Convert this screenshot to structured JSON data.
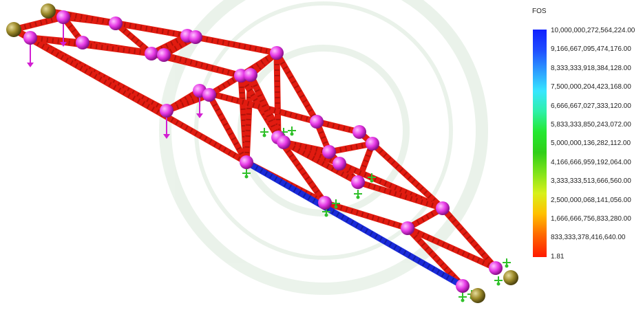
{
  "legend": {
    "title": "FOS",
    "ticks": [
      "10,000,000,272,564,224.00",
      "9,166,667,095,474,176.00",
      "8,333,333,918,384,128.00",
      "7,500,000,204,423,168.00",
      "6,666,667,027,333,120.00",
      "5,833,333,850,243,072.00",
      "5,000,000,136,282,112.00",
      "4,166,666,959,192,064.00",
      "3,333,333,513,666,560.00",
      "2,500,000,068,141,056.00",
      "1,666,666,756,833,280.00",
      "833,333,378,416,640.00",
      "1.81"
    ]
  },
  "colors": {
    "member": "#e11b10",
    "member_dark": "#8c0b05",
    "highlight_member": "#1a2ad9",
    "joint": "#e63ae6",
    "support": "#9c8a2a",
    "load_arrow": "#d21fd2",
    "fixture": "#2fc02a"
  },
  "icons": {
    "support": "fixed-support-sphere-icon",
    "load": "downward-force-arrow-icon",
    "fixture": "fixture-marker-icon"
  }
}
